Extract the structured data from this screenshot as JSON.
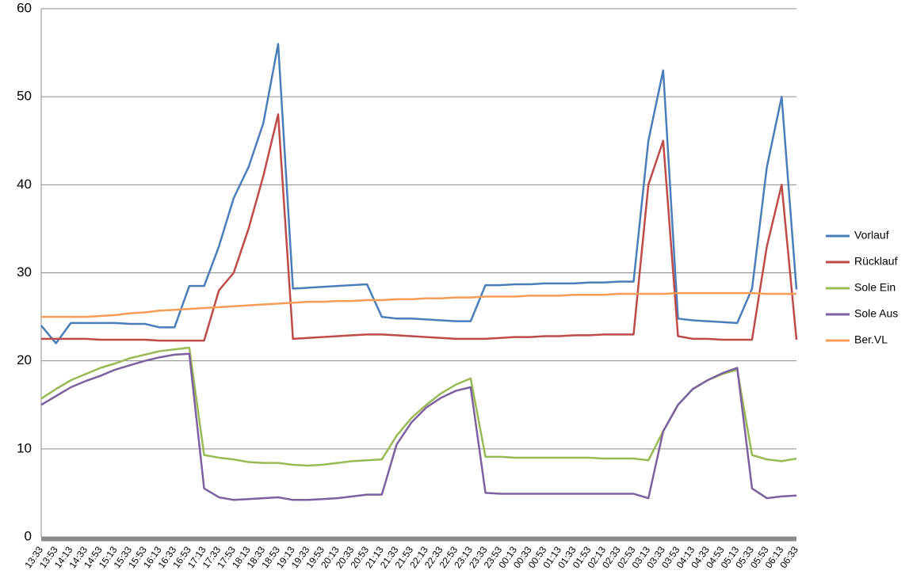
{
  "chart_data": {
    "type": "line",
    "categories": [
      "13:33",
      "13:53",
      "14:13",
      "14:33",
      "14:53",
      "15:13",
      "15:33",
      "15:53",
      "16:13",
      "16:33",
      "16:53",
      "17:13",
      "17:33",
      "17:53",
      "18:13",
      "18:33",
      "18:53",
      "19:13",
      "19:33",
      "19:53",
      "20:13",
      "20:33",
      "20:53",
      "21:13",
      "21:33",
      "21:53",
      "22:13",
      "22:33",
      "22:53",
      "23:13",
      "23:33",
      "23:53",
      "00:13",
      "00:33",
      "00:53",
      "01:13",
      "01:33",
      "01:53",
      "02:13",
      "02:33",
      "02:53",
      "03:13",
      "03:33",
      "03:53",
      "04:13",
      "04:33",
      "04:53",
      "05:13",
      "05:33",
      "05:53",
      "06:13",
      "06:33"
    ],
    "series": [
      {
        "name": "Vorlauf",
        "color": "#4a7ebb",
        "values": [
          24,
          22,
          24.3,
          24.3,
          24.3,
          24.3,
          24.2,
          24.2,
          23.8,
          23.8,
          28.5,
          28.5,
          33,
          38.5,
          42,
          47,
          56,
          28.2,
          28.3,
          28.4,
          28.5,
          28.6,
          28.7,
          25,
          24.8,
          24.8,
          24.7,
          24.6,
          24.5,
          24.5,
          28.6,
          28.6,
          28.7,
          28.7,
          28.8,
          28.8,
          28.8,
          28.9,
          28.9,
          29,
          29,
          45,
          53,
          24.8,
          24.6,
          24.5,
          24.4,
          24.3,
          28.2,
          42,
          50,
          28.1
        ]
      },
      {
        "name": "Rücklauf",
        "color": "#be4b48",
        "values": [
          22.5,
          22.5,
          22.5,
          22.5,
          22.4,
          22.4,
          22.4,
          22.4,
          22.3,
          22.3,
          22.3,
          22.3,
          28,
          30,
          35,
          41,
          48,
          22.5,
          22.6,
          22.7,
          22.8,
          22.9,
          23,
          23,
          22.9,
          22.8,
          22.7,
          22.6,
          22.5,
          22.5,
          22.5,
          22.6,
          22.7,
          22.7,
          22.8,
          22.8,
          22.9,
          22.9,
          23,
          23,
          23,
          40,
          45,
          22.8,
          22.5,
          22.5,
          22.4,
          22.4,
          22.4,
          33,
          40,
          22.4
        ]
      },
      {
        "name": "Sole Ein",
        "color": "#98b954",
        "values": [
          15.7,
          16.8,
          17.8,
          18.5,
          19.2,
          19.7,
          20.3,
          20.7,
          21.1,
          21.3,
          21.5,
          9.3,
          9,
          8.8,
          8.5,
          8.4,
          8.4,
          8.2,
          8.1,
          8.2,
          8.4,
          8.6,
          8.7,
          8.8,
          11.5,
          13.5,
          15,
          16.3,
          17.3,
          18,
          9.1,
          9.1,
          9,
          9,
          9,
          9,
          9,
          9,
          8.9,
          8.9,
          8.9,
          8.7,
          12,
          15,
          16.8,
          17.8,
          18.5,
          19,
          9.3,
          8.8,
          8.6,
          8.9
        ]
      },
      {
        "name": "Sole Aus",
        "color": "#7d60a0",
        "values": [
          15,
          16,
          17,
          17.7,
          18.3,
          19,
          19.5,
          20,
          20.4,
          20.7,
          20.8,
          5.5,
          4.5,
          4.2,
          4.3,
          4.4,
          4.5,
          4.2,
          4.2,
          4.3,
          4.4,
          4.6,
          4.8,
          4.8,
          10.5,
          13,
          14.7,
          15.8,
          16.6,
          17,
          5,
          4.9,
          4.9,
          4.9,
          4.9,
          4.9,
          4.9,
          4.9,
          4.9,
          4.9,
          4.9,
          4.4,
          12,
          15,
          16.8,
          17.8,
          18.6,
          19.2,
          5.5,
          4.4,
          4.6,
          4.7
        ]
      },
      {
        "name": "Ber.VL",
        "color": "#f59d56",
        "values": [
          25,
          25,
          25,
          25,
          25.1,
          25.2,
          25.4,
          25.5,
          25.7,
          25.8,
          25.9,
          26,
          26.1,
          26.2,
          26.3,
          26.4,
          26.5,
          26.6,
          26.7,
          26.7,
          26.8,
          26.8,
          26.9,
          26.9,
          27,
          27,
          27.1,
          27.1,
          27.2,
          27.2,
          27.3,
          27.3,
          27.3,
          27.4,
          27.4,
          27.4,
          27.5,
          27.5,
          27.5,
          27.6,
          27.6,
          27.6,
          27.6,
          27.7,
          27.7,
          27.7,
          27.7,
          27.7,
          27.7,
          27.6,
          27.6,
          27.6
        ]
      }
    ],
    "ylim": [
      0,
      60
    ],
    "yticks": [
      0,
      10,
      20,
      30,
      40,
      50,
      60
    ],
    "grid": true,
    "legend": "right"
  }
}
